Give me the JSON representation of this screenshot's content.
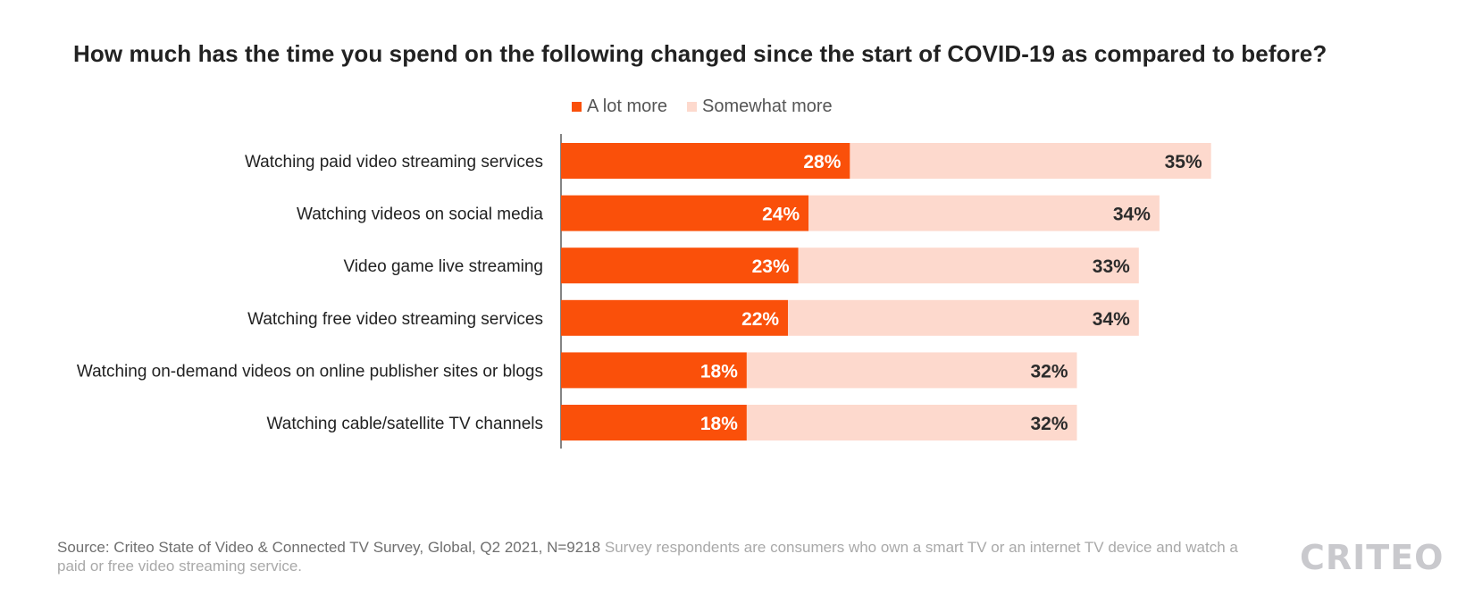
{
  "chart_data": {
    "type": "bar",
    "orientation": "horizontal",
    "stacked": true,
    "title": "How much has the time you spend on the following changed since the start of COVID-19 as compared to before?",
    "xlabel": "",
    "ylabel": "",
    "xlim": [
      0,
      63
    ],
    "grid": false,
    "legend_position": "top-center",
    "categories": [
      "Watching paid video streaming services",
      "Watching videos on social media",
      "Video game live streaming",
      "Watching free video streaming services",
      "Watching on-demand videos on online publisher sites or blogs",
      "Watching cable/satellite TV channels"
    ],
    "series": [
      {
        "name": "A lot more",
        "color": "#fa500a",
        "values": [
          28,
          24,
          23,
          22,
          18,
          18
        ],
        "labels": [
          "28%",
          "24%",
          "23%",
          "22%",
          "18%",
          "18%"
        ]
      },
      {
        "name": "Somewhat more",
        "color": "#fdd9cd",
        "values": [
          35,
          34,
          33,
          34,
          32,
          32
        ],
        "labels": [
          "35%",
          "34%",
          "33%",
          "34%",
          "32%",
          "32%"
        ]
      }
    ]
  },
  "footer": {
    "source": "Source: Criteo State of Video & Connected TV Survey, Global, Q2 2021, N=9218",
    "note": "Survey respondents are consumers who own a smart TV or an internet TV device and watch a paid or free video streaming service."
  },
  "logo": {
    "text": "CRITEO",
    "color": "#c9c9cd"
  }
}
